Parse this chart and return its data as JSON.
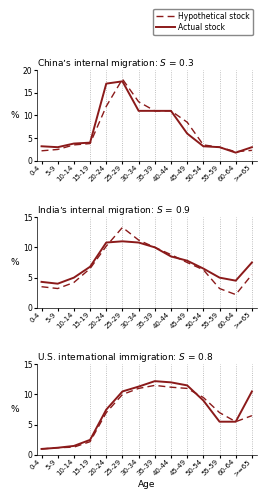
{
  "age_labels": [
    "0-4",
    "5-9",
    "10-14",
    "15-19",
    "20-24",
    "25-29",
    "30-34",
    "35-39",
    "40-44",
    "45-49",
    "50-54",
    "55-59",
    "60-64",
    ">=65"
  ],
  "china_hyp": [
    2.2,
    2.5,
    3.5,
    3.8,
    12.0,
    18.0,
    13.0,
    11.0,
    11.0,
    8.5,
    3.5,
    3.0,
    2.0,
    2.3
  ],
  "china_act": [
    3.2,
    3.0,
    3.8,
    4.0,
    17.0,
    17.5,
    11.0,
    11.0,
    11.0,
    6.0,
    3.2,
    3.0,
    1.8,
    3.0
  ],
  "india_hyp": [
    3.5,
    3.2,
    4.2,
    6.5,
    10.2,
    13.3,
    11.2,
    10.0,
    8.8,
    7.5,
    6.3,
    3.2,
    2.2,
    5.5
  ],
  "india_act": [
    4.3,
    4.0,
    5.0,
    6.8,
    10.8,
    11.0,
    10.8,
    10.0,
    8.5,
    7.8,
    6.5,
    5.0,
    4.5,
    7.5
  ],
  "us_hyp": [
    1.0,
    1.2,
    1.3,
    2.2,
    7.0,
    10.0,
    11.0,
    11.5,
    11.2,
    11.0,
    9.5,
    7.0,
    5.5,
    6.5
  ],
  "us_act": [
    1.0,
    1.2,
    1.5,
    2.5,
    7.5,
    10.5,
    11.3,
    12.2,
    12.0,
    11.5,
    9.0,
    5.5,
    5.5,
    10.5
  ],
  "titles": [
    "China’s internal migration: $S$ = 0.3",
    "India’s internal migration: $S$ = 0.9",
    "U.S. international immigration: $S$ = 0.8"
  ],
  "ylims": [
    20,
    15,
    15
  ],
  "yticks": [
    [
      0,
      5,
      10,
      15,
      20
    ],
    [
      0,
      5,
      10,
      15
    ],
    [
      0,
      5,
      10,
      15
    ]
  ],
  "line_color": "#8B1A1A",
  "vline_color": "#AAAAAA",
  "vline_positions": [
    3,
    4,
    5,
    6,
    7,
    8,
    9,
    10,
    11,
    12,
    13
  ],
  "xlabel": "Age",
  "ylabel": "%"
}
